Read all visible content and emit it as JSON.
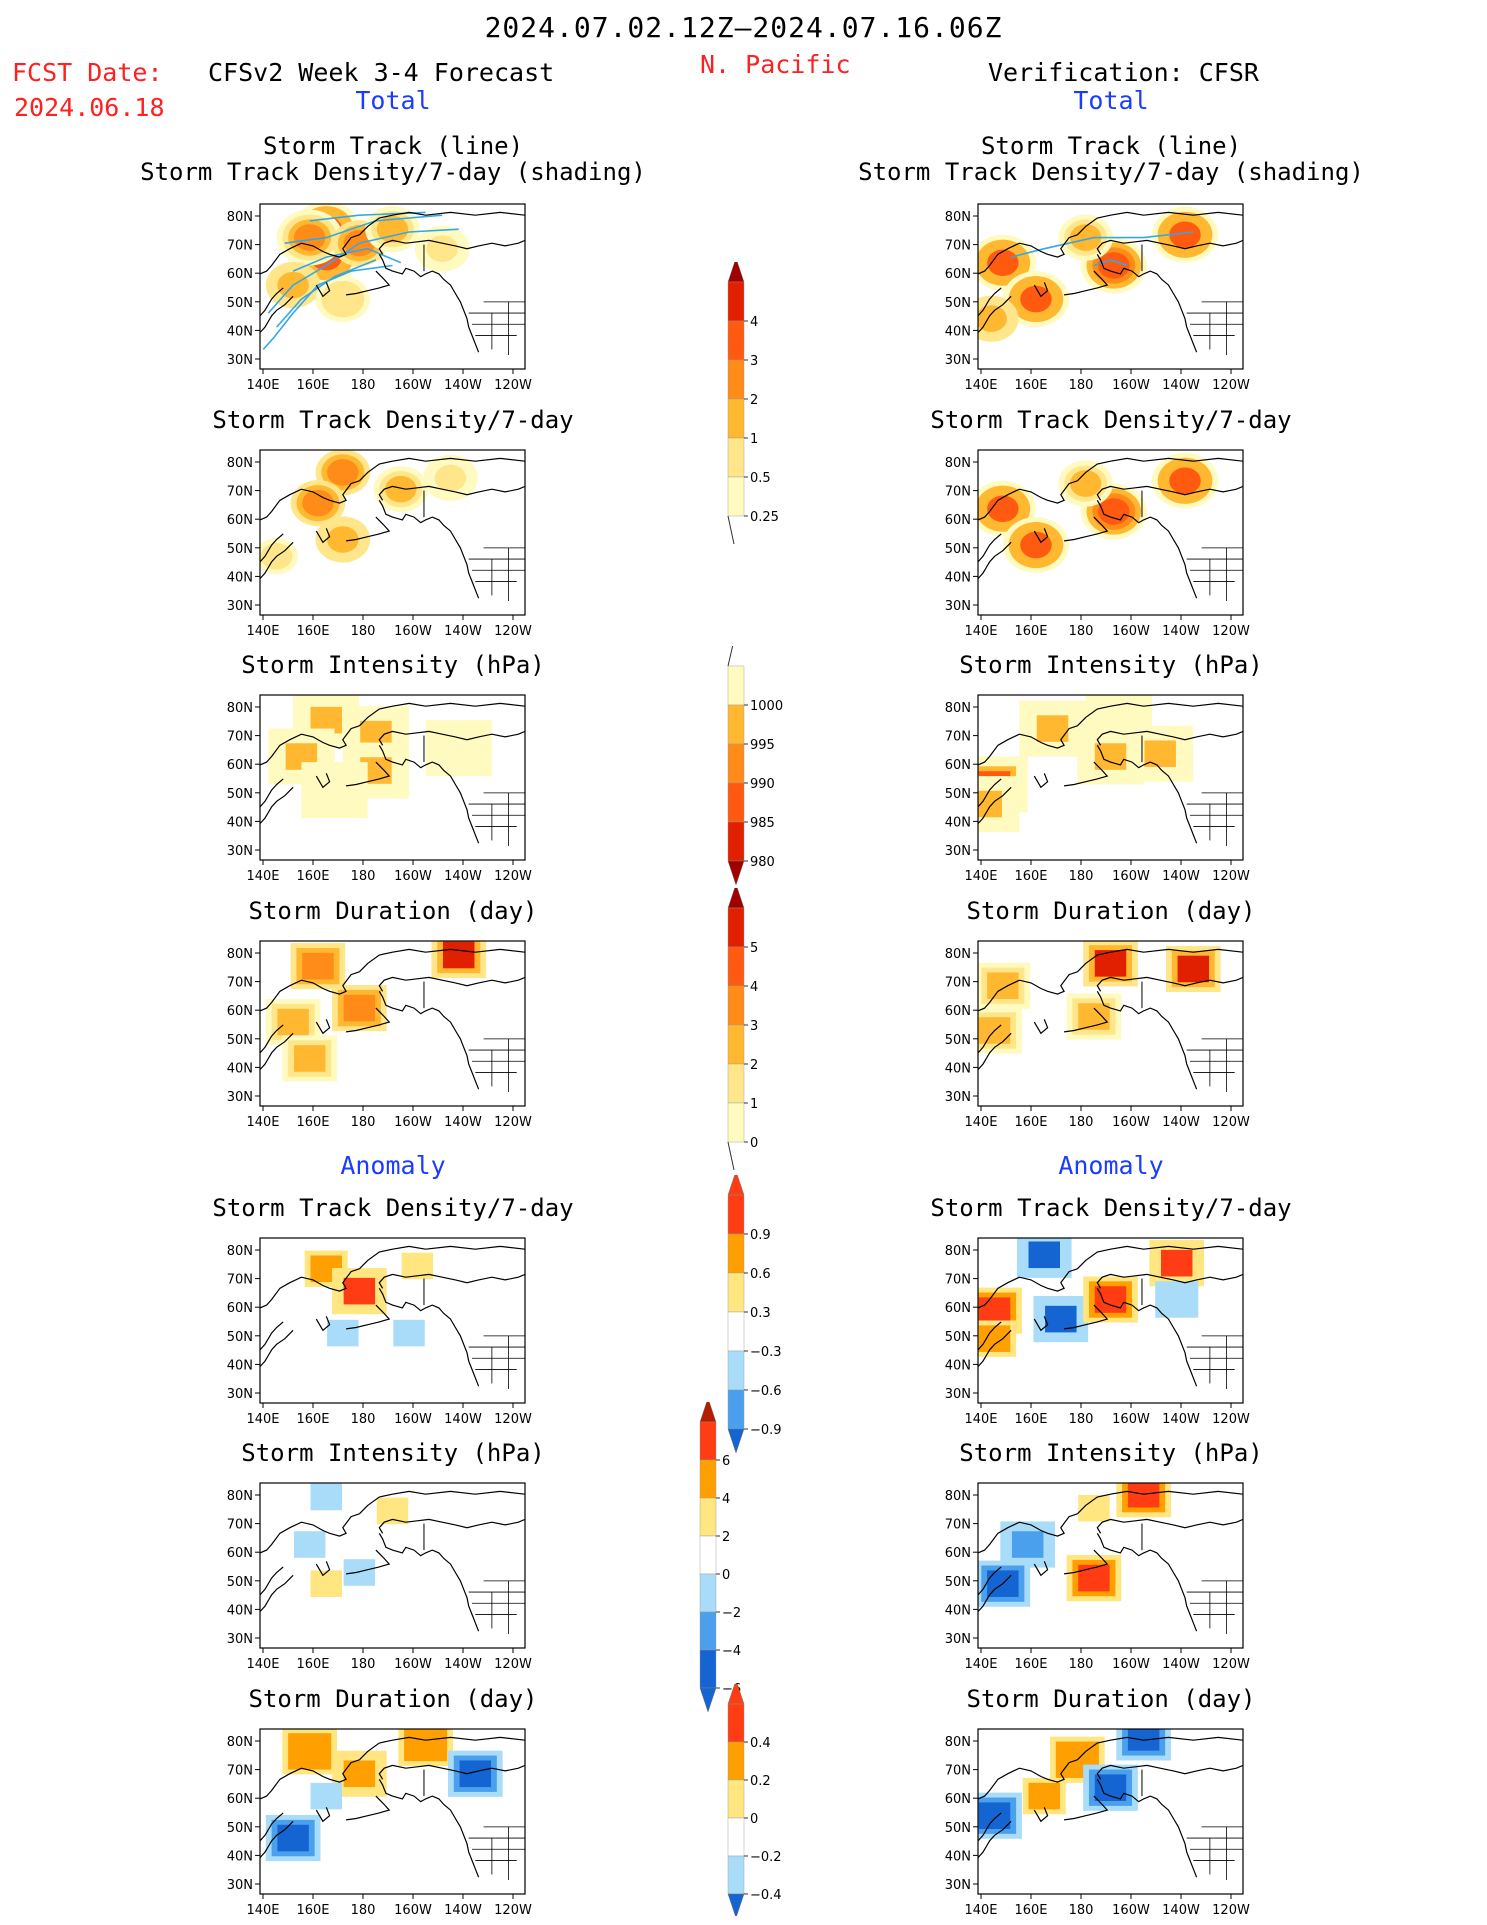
{
  "header": {
    "date_range": "2024.07.02.12Z–2024.07.16.06Z",
    "fcst_label": "FCST Date:",
    "fcst_date": "2024.06.18",
    "model_title": "CFSv2 Week 3-4 Forecast",
    "region": "N. Pacific",
    "verification_title": "Verification: CFSR"
  },
  "sections": {
    "total": "Total",
    "anomaly": "Anomaly"
  },
  "panel_titles": {
    "track_line": "Storm Track (line)",
    "track_shading": "Storm Track Density/7-day (shading)",
    "density": "Storm Track Density/7-day",
    "intensity": "Storm Intensity (hPa)",
    "duration": "Storm Duration (day)"
  },
  "axes": {
    "x_ticks": [
      "140E",
      "160E",
      "180",
      "160W",
      "140W",
      "120W"
    ],
    "y_ticks": [
      "80N",
      "70N",
      "60N",
      "50N",
      "40N",
      "30N"
    ]
  },
  "colorbars": {
    "density_total": [
      "4",
      "3",
      "2",
      "1",
      "0.5",
      "0.25"
    ],
    "intensity_total": [
      "1000",
      "995",
      "990",
      "985",
      "980"
    ],
    "duration_total": [
      "5",
      "4",
      "3",
      "2",
      "1",
      "0"
    ],
    "density_anom": [
      "0.9",
      "0.6",
      "0.3",
      "−0.3",
      "−0.6",
      "−0.9"
    ],
    "intensity_anom": [
      "6",
      "4",
      "2",
      "0",
      "−2",
      "−4",
      "−6"
    ],
    "duration_anom": [
      "0.4",
      "0.2",
      "0",
      "−0.2",
      "−0.4"
    ]
  },
  "colors": {
    "total_scale": [
      "#fffac0",
      "#ffe68a",
      "#ffb830",
      "#ff8c18",
      "#ff5a10",
      "#e02000",
      "#a00000"
    ],
    "anom_scale": [
      "#1464d2",
      "#4ba0ee",
      "#a8dcf8",
      "#ffffff",
      "#ffe680",
      "#ffa000",
      "#ff3c14",
      "#b41e00"
    ],
    "track_line": "#33a8e8",
    "title_red": "#ff2020",
    "section_blue": "#1a3cff"
  },
  "chart_data": [
    {
      "type": "heatmap",
      "panel": "forecast_total_track",
      "region": "N. Pacific",
      "xlim": [
        "140E",
        "120W"
      ],
      "ylim": [
        "30N",
        "80N"
      ],
      "overlay": "storm track lines",
      "cells": [
        {
          "lon": -20,
          "lat": 75,
          "v": 3
        },
        {
          "lon": -20,
          "lat": 65,
          "v": 3.2
        },
        {
          "lon": -30,
          "lat": 72,
          "v": 2.6
        },
        {
          "lon": 0,
          "lat": 70,
          "v": 2
        },
        {
          "lon": -40,
          "lat": 55,
          "v": 1.6
        },
        {
          "lon": 20,
          "lat": 75,
          "v": 1.3
        },
        {
          "lon": 50,
          "lat": 68,
          "v": 0.8
        },
        {
          "lon": -10,
          "lat": 50,
          "v": 0.9
        }
      ]
    },
    {
      "type": "heatmap",
      "panel": "verification_total_track",
      "region": "N. Pacific",
      "xlim": [
        "140E",
        "120W"
      ],
      "ylim": [
        "30N",
        "80N"
      ],
      "overlay": "storm track lines",
      "cells": [
        {
          "lon": -45,
          "lat": 63,
          "v": 3.2
        },
        {
          "lon": 22,
          "lat": 62,
          "v": 3.4
        },
        {
          "lon": -25,
          "lat": 50,
          "v": 3
        },
        {
          "lon": 65,
          "lat": 73,
          "v": 3
        },
        {
          "lon": 5,
          "lat": 72,
          "v": 1.2
        },
        {
          "lon": -52,
          "lat": 43,
          "v": 1.5
        }
      ]
    },
    {
      "type": "heatmap",
      "panel": "forecast_total_density",
      "region": "N. Pacific",
      "xlim": [
        "140E",
        "120W"
      ],
      "ylim": [
        "30N",
        "80N"
      ],
      "cells": [
        {
          "lon": -10,
          "lat": 76,
          "v": 2.4
        },
        {
          "lon": -25,
          "lat": 65,
          "v": 2
        },
        {
          "lon": -10,
          "lat": 52,
          "v": 1.6
        },
        {
          "lon": 25,
          "lat": 70,
          "v": 1.1
        },
        {
          "lon": 55,
          "lat": 74,
          "v": 0.8
        },
        {
          "lon": -50,
          "lat": 46,
          "v": 0.7
        }
      ]
    },
    {
      "type": "heatmap",
      "panel": "verification_total_density",
      "region": "N. Pacific",
      "xlim": [
        "140E",
        "120W"
      ],
      "ylim": [
        "30N",
        "80N"
      ],
      "cells": [
        {
          "lon": -45,
          "lat": 63,
          "v": 3.2
        },
        {
          "lon": 22,
          "lat": 62,
          "v": 3.4
        },
        {
          "lon": -25,
          "lat": 50,
          "v": 3
        },
        {
          "lon": 65,
          "lat": 73,
          "v": 3
        },
        {
          "lon": 5,
          "lat": 72,
          "v": 1.2
        }
      ]
    },
    {
      "type": "heatmap",
      "panel": "forecast_total_intensity",
      "units": "hPa",
      "region": "N. Pacific",
      "xlim": [
        "140E",
        "120W"
      ],
      "ylim": [
        "30N",
        "80N"
      ],
      "cells": [
        {
          "lon": -20,
          "lat": 75,
          "v": 993
        },
        {
          "lon": 10,
          "lat": 70,
          "v": 993
        },
        {
          "lon": -35,
          "lat": 62,
          "v": 993
        },
        {
          "lon": 10,
          "lat": 57,
          "v": 992
        },
        {
          "lon": -15,
          "lat": 50,
          "v": 997
        },
        {
          "lon": 60,
          "lat": 65,
          "v": 998
        }
      ]
    },
    {
      "type": "heatmap",
      "panel": "verification_total_intensity",
      "units": "hPa",
      "region": "N. Pacific",
      "xlim": [
        "140E",
        "120W"
      ],
      "ylim": [
        "30N",
        "80N"
      ],
      "cells": [
        {
          "lon": -15,
          "lat": 72,
          "v": 994
        },
        {
          "lon": 25,
          "lat": 75,
          "v": 998
        },
        {
          "lon": -50,
          "lat": 52,
          "v": 989
        },
        {
          "lon": -55,
          "lat": 45,
          "v": 993
        },
        {
          "lon": 20,
          "lat": 62,
          "v": 994
        },
        {
          "lon": 50,
          "lat": 63,
          "v": 994
        }
      ]
    },
    {
      "type": "heatmap",
      "panel": "forecast_total_duration",
      "units": "day",
      "region": "N. Pacific",
      "xlim": [
        "140E",
        "120W"
      ],
      "ylim": [
        "30N",
        "80N"
      ],
      "cells": [
        {
          "lon": -25,
          "lat": 75,
          "v": 3.5
        },
        {
          "lon": 60,
          "lat": 79,
          "v": 4.6
        },
        {
          "lon": 0,
          "lat": 60,
          "v": 3.4
        },
        {
          "lon": -40,
          "lat": 55,
          "v": 2.6
        },
        {
          "lon": -30,
          "lat": 42,
          "v": 2.4
        }
      ]
    },
    {
      "type": "heatmap",
      "panel": "verification_total_duration",
      "units": "day",
      "region": "N. Pacific",
      "xlim": [
        "140E",
        "120W"
      ],
      "ylim": [
        "30N",
        "80N"
      ],
      "cells": [
        {
          "lon": 20,
          "lat": 76,
          "v": 4.5
        },
        {
          "lon": 70,
          "lat": 74,
          "v": 4.5
        },
        {
          "lon": -45,
          "lat": 68,
          "v": 2.5
        },
        {
          "lon": -50,
          "lat": 52,
          "v": 2.5
        },
        {
          "lon": 10,
          "lat": 57,
          "v": 2.5
        }
      ]
    },
    {
      "type": "heatmap",
      "panel": "forecast_anomaly_density",
      "region": "N. Pacific",
      "xlim": [
        "140E",
        "120W"
      ],
      "ylim": [
        "30N",
        "80N"
      ],
      "cells": [
        {
          "lon": -20,
          "lat": 73,
          "v": 0.7
        },
        {
          "lon": 0,
          "lat": 65,
          "v": 0.9
        },
        {
          "lon": 35,
          "lat": 74,
          "v": 0.4
        },
        {
          "lon": -10,
          "lat": 50,
          "v": -0.3
        },
        {
          "lon": 30,
          "lat": 50,
          "v": -0.4
        }
      ]
    },
    {
      "type": "heatmap",
      "panel": "verification_anomaly_density",
      "region": "N. Pacific",
      "xlim": [
        "140E",
        "120W"
      ],
      "ylim": [
        "30N",
        "80N"
      ],
      "cells": [
        {
          "lon": -20,
          "lat": 78,
          "v": -0.95
        },
        {
          "lon": -10,
          "lat": 55,
          "v": -0.95
        },
        {
          "lon": -50,
          "lat": 58,
          "v": 1
        },
        {
          "lon": -50,
          "lat": 48,
          "v": 0.8
        },
        {
          "lon": 20,
          "lat": 62,
          "v": 1
        },
        {
          "lon": 60,
          "lat": 75,
          "v": 0.9
        },
        {
          "lon": 60,
          "lat": 62,
          "v": -0.5
        }
      ]
    },
    {
      "type": "heatmap",
      "panel": "forecast_anomaly_intensity",
      "units": "hPa",
      "region": "N. Pacific",
      "xlim": [
        "140E",
        "120W"
      ],
      "ylim": [
        "30N",
        "80N"
      ],
      "cells": [
        {
          "lon": -20,
          "lat": 79,
          "v": -1.5
        },
        {
          "lon": -30,
          "lat": 62,
          "v": -1
        },
        {
          "lon": -20,
          "lat": 48,
          "v": 1.5
        },
        {
          "lon": 20,
          "lat": 74,
          "v": 1.5
        },
        {
          "lon": 0,
          "lat": 52,
          "v": -1.2
        }
      ]
    },
    {
      "type": "heatmap",
      "panel": "verification_anomaly_intensity",
      "units": "hPa",
      "region": "N. Pacific",
      "xlim": [
        "140E",
        "120W"
      ],
      "ylim": [
        "30N",
        "80N"
      ],
      "cells": [
        {
          "lon": 40,
          "lat": 80,
          "v": 5
        },
        {
          "lon": 10,
          "lat": 75,
          "v": 1.5
        },
        {
          "lon": -30,
          "lat": 62,
          "v": -3
        },
        {
          "lon": -45,
          "lat": 48,
          "v": -4
        },
        {
          "lon": 10,
          "lat": 50,
          "v": 4
        }
      ]
    },
    {
      "type": "heatmap",
      "panel": "forecast_anomaly_duration",
      "units": "day",
      "region": "N. Pacific",
      "xlim": [
        "140E",
        "120W"
      ],
      "ylim": [
        "30N",
        "80N"
      ],
      "cells": [
        {
          "lon": -30,
          "lat": 76,
          "v": 0.35
        },
        {
          "lon": 40,
          "lat": 79,
          "v": 0.35
        },
        {
          "lon": 0,
          "lat": 68,
          "v": 0.3
        },
        {
          "lon": -40,
          "lat": 45,
          "v": -0.45
        },
        {
          "lon": 70,
          "lat": 68,
          "v": -0.4
        },
        {
          "lon": -20,
          "lat": 60,
          "v": -0.15
        }
      ]
    },
    {
      "type": "heatmap",
      "panel": "verification_anomaly_duration",
      "units": "day",
      "region": "N. Pacific",
      "xlim": [
        "140E",
        "120W"
      ],
      "ylim": [
        "30N",
        "80N"
      ],
      "cells": [
        {
          "lon": 40,
          "lat": 81,
          "v": -0.45
        },
        {
          "lon": 0,
          "lat": 73,
          "v": 0.35
        },
        {
          "lon": -50,
          "lat": 53,
          "v": -0.45
        },
        {
          "lon": 20,
          "lat": 63,
          "v": -0.4
        },
        {
          "lon": -20,
          "lat": 60,
          "v": 0.2
        }
      ]
    }
  ]
}
